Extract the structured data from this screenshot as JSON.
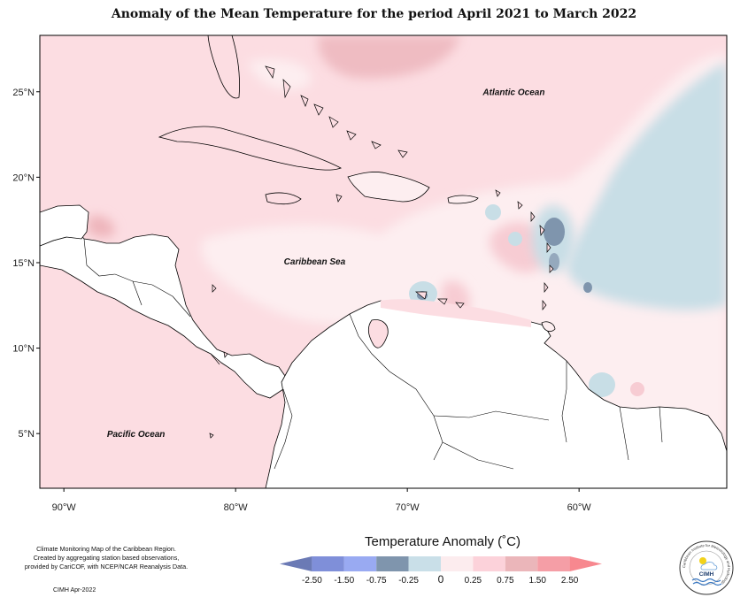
{
  "title": "Anomaly of the Mean Temperature for the period April 2021 to March 2022",
  "map": {
    "lat_labels": [
      {
        "value": 25,
        "label": "25°N"
      },
      {
        "value": 20,
        "label": "20°N"
      },
      {
        "value": 15,
        "label": "15°N"
      },
      {
        "value": 10,
        "label": "10°N"
      },
      {
        "value": 5,
        "label": "5°N"
      }
    ],
    "lon_labels": [
      {
        "value": -90,
        "label": "90°W"
      },
      {
        "value": -80,
        "label": "80°W"
      },
      {
        "value": -70,
        "label": "70°W"
      },
      {
        "value": -60,
        "label": "60°W"
      }
    ],
    "extent": {
      "lon_min": -91.4,
      "lon_max": -51.4,
      "lat_min": 1.8,
      "lat_max": 28.3
    },
    "region_labels": [
      {
        "text": "Atlantic Ocean",
        "lon": -63.8,
        "lat": 24.8
      },
      {
        "text": "Caribbean Sea",
        "lon": -75.4,
        "lat": 14.9
      },
      {
        "text": "Pacific Ocean",
        "lon": -85.8,
        "lat": 4.8
      }
    ]
  },
  "legend": {
    "title": "Temperature Anomaly (˚C)",
    "tick_labels": [
      "-2.50",
      "-1.50",
      "-0.75",
      "-0.25",
      "0",
      "0.25",
      "0.75",
      "1.50",
      "2.50"
    ],
    "colors": [
      "#6b7ab5",
      "#7f8fd9",
      "#99aaf2",
      "#7f95ad",
      "#c9dfe8",
      "#fcecee",
      "#fcd2da",
      "#ebb6ba",
      "#f59ea6",
      "#f7888f"
    ]
  },
  "credit": {
    "line1": "Climate Monitoring Map of the Caribbean Region.",
    "line2": "Created by aggregating station based observations,",
    "line3": "provided by CariCOF, with NCEP/NCAR Reanalysis Data.",
    "date": "CIMH Apr-2022"
  },
  "logo": {
    "text": "CIMH",
    "ring_text": "Caribbean Institute for Meteorology and Hydrology"
  }
}
